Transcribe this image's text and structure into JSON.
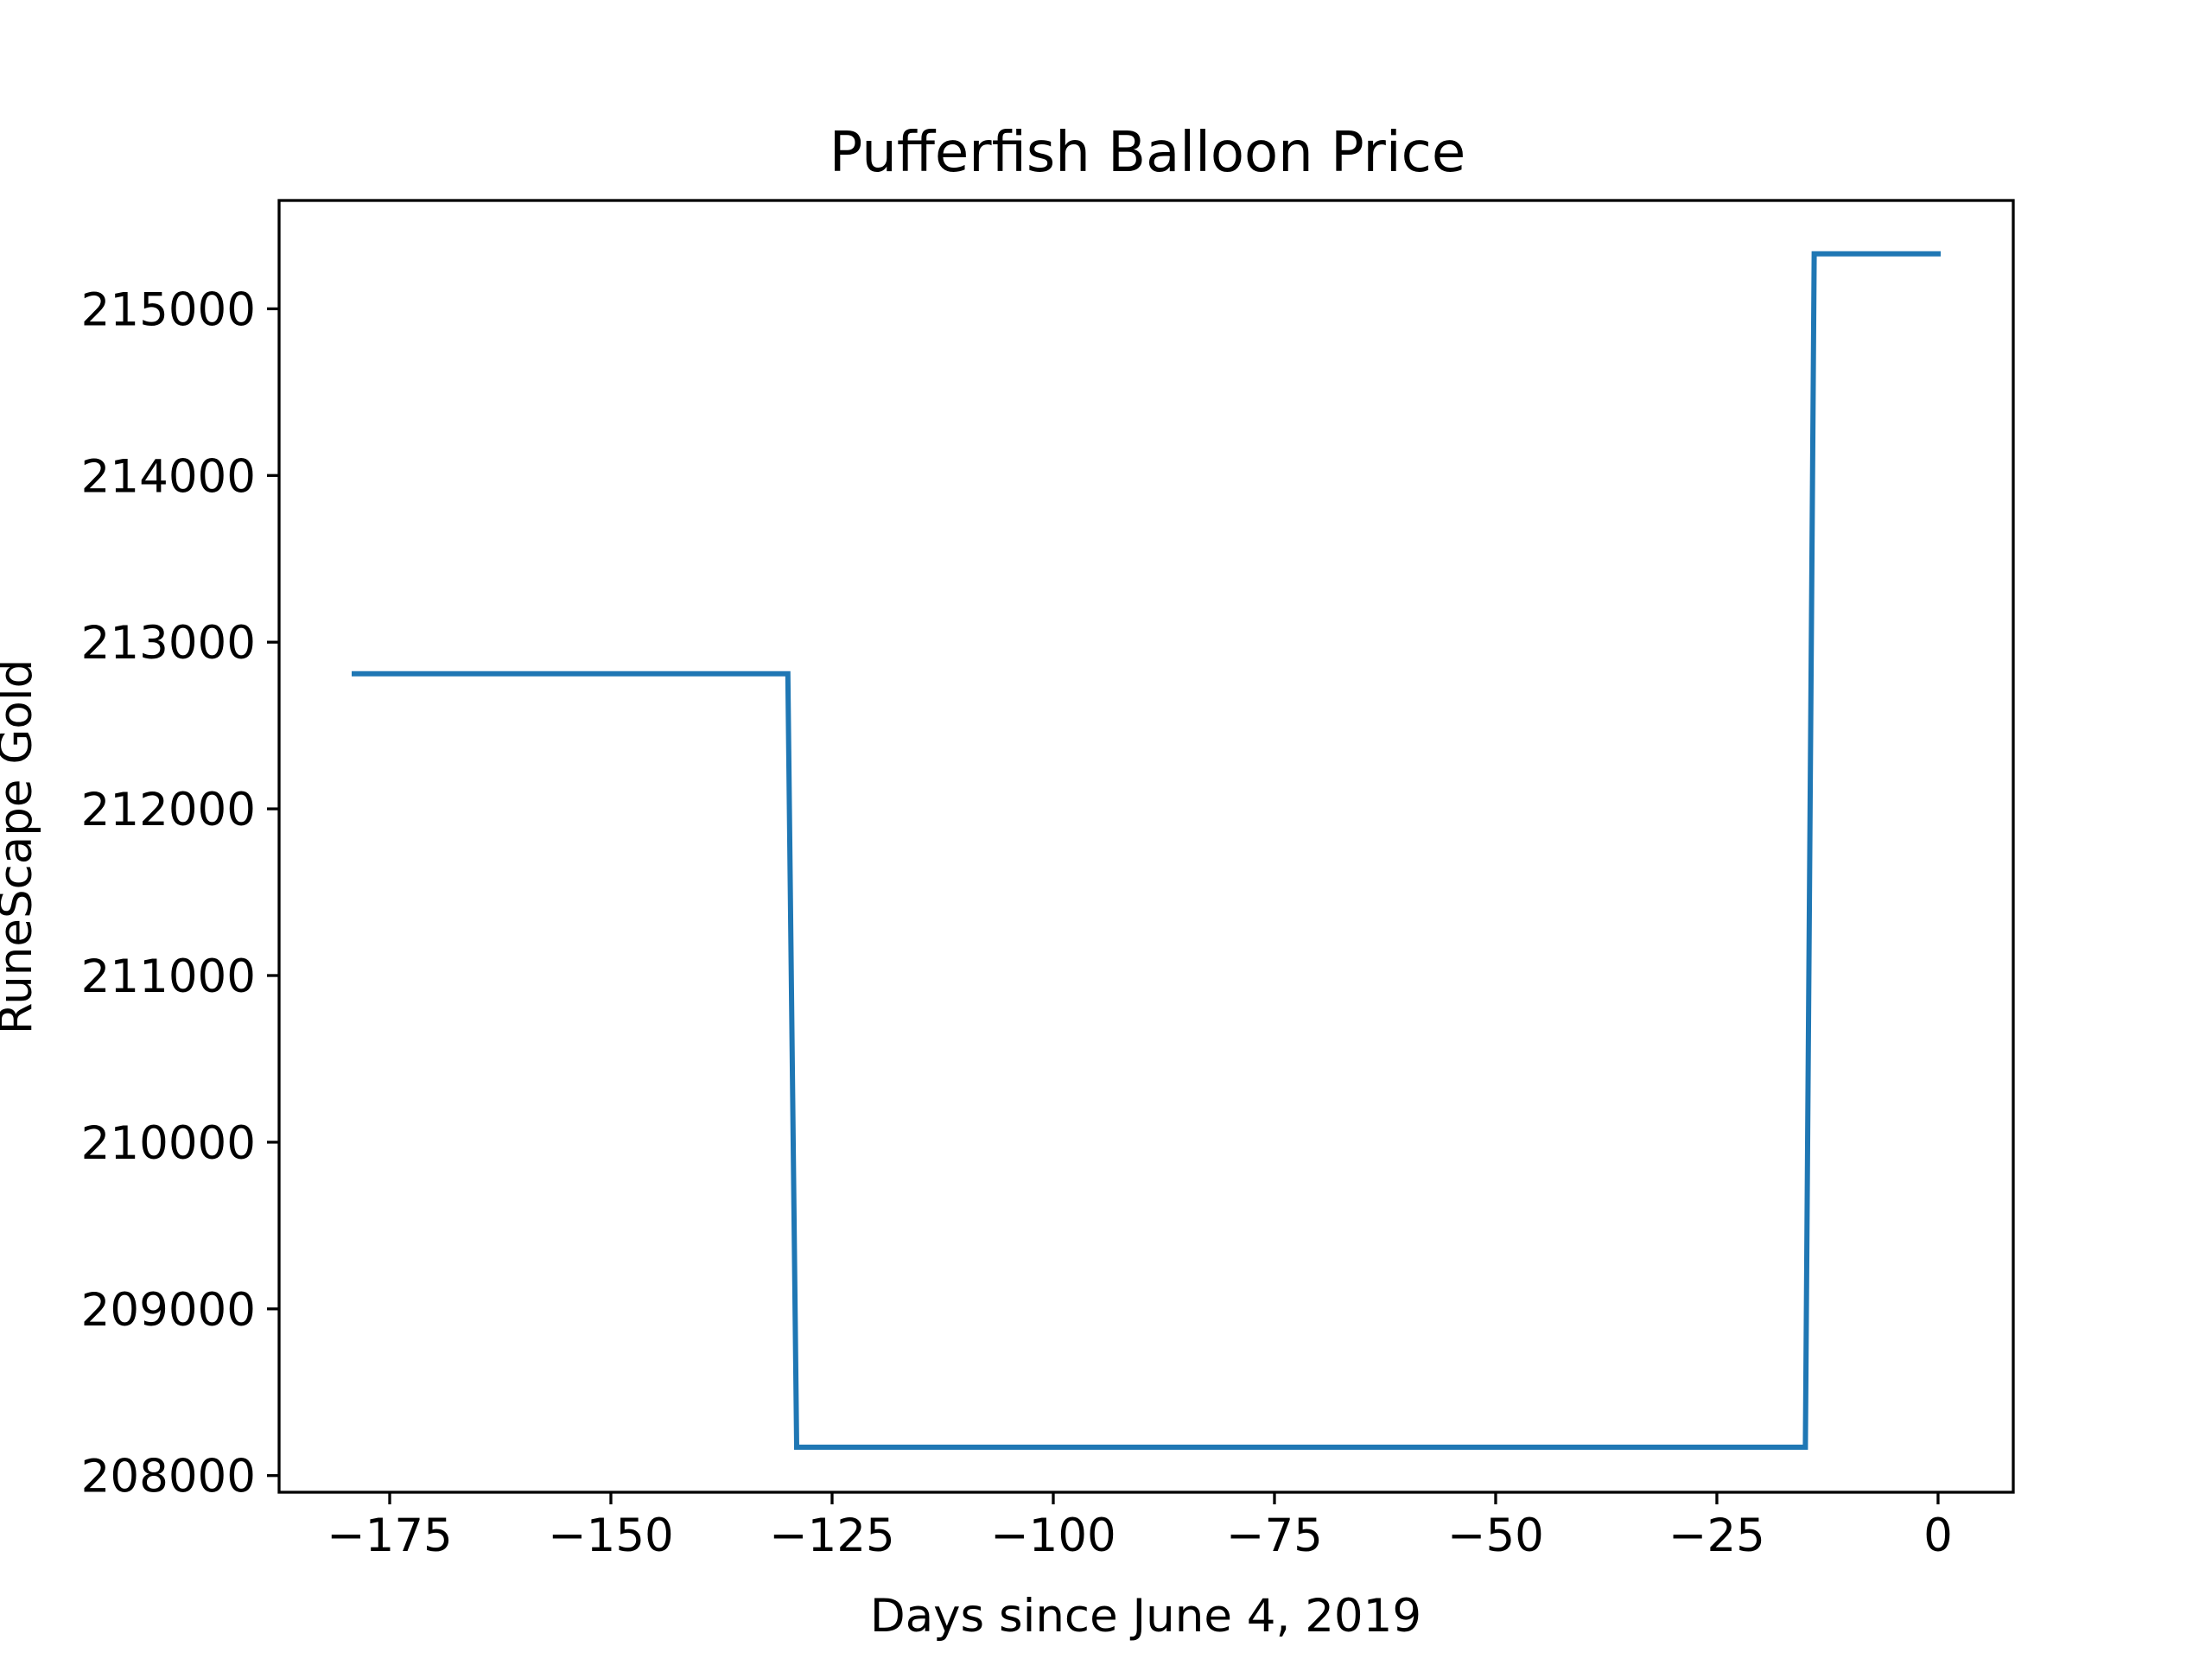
{
  "chart_data": {
    "type": "line",
    "title": "Pufferfish Balloon Price",
    "xlabel": "Days since June 4, 2019",
    "ylabel": "RuneScape Gold",
    "xlim": [
      -187.5,
      8.5
    ],
    "ylim": [
      207900,
      215650
    ],
    "x_ticks": [
      {
        "value": -175,
        "label": "−175"
      },
      {
        "value": -150,
        "label": "−150"
      },
      {
        "value": -125,
        "label": "−125"
      },
      {
        "value": -100,
        "label": "−100"
      },
      {
        "value": -75,
        "label": "−75"
      },
      {
        "value": -50,
        "label": "−50"
      },
      {
        "value": -25,
        "label": "−25"
      },
      {
        "value": 0,
        "label": "0"
      }
    ],
    "y_ticks": [
      {
        "value": 208000,
        "label": "208000"
      },
      {
        "value": 209000,
        "label": "209000"
      },
      {
        "value": 210000,
        "label": "210000"
      },
      {
        "value": 211000,
        "label": "211000"
      },
      {
        "value": 212000,
        "label": "212000"
      },
      {
        "value": 213000,
        "label": "213000"
      },
      {
        "value": 214000,
        "label": "214000"
      },
      {
        "value": 215000,
        "label": "215000"
      }
    ],
    "grid": false,
    "legend": "none",
    "series": [
      {
        "color": "#1f77b4",
        "x": [
          -179,
          -130,
          -129,
          -15,
          -14,
          0
        ],
        "y": [
          212810,
          212810,
          208170,
          208170,
          215330,
          215330
        ]
      }
    ]
  }
}
